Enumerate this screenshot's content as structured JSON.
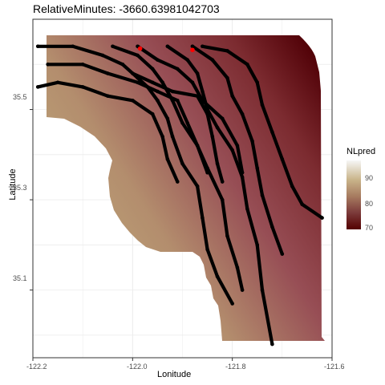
{
  "chart_data": {
    "type": "scatter",
    "title": "RelativeMinutes: -3660.63981042703",
    "xlabel": "Lonitude",
    "ylabel": "Latitude",
    "xlim": [
      -122.2,
      -121.6
    ],
    "ylim": [
      34.95,
      35.7
    ],
    "x_ticks": [
      "-122.2",
      "-122.0",
      "-121.8",
      "-121.6"
    ],
    "y_ticks": [
      "35.1",
      "35.3",
      "35.5"
    ],
    "legend": {
      "title": "NLpred",
      "labels": [
        "90",
        "80",
        "70"
      ],
      "values": [
        90,
        80,
        70
      ],
      "range": [
        67,
        96
      ],
      "position": "right"
    },
    "grid": true,
    "series": [
      {
        "color": "#000000",
        "tracks": [
          [
            [
              -122.19,
              35.64
            ],
            [
              -122.12,
              35.64
            ],
            [
              -122.06,
              35.62
            ],
            [
              -122.02,
              35.6
            ],
            [
              -121.99,
              35.57
            ],
            [
              -121.97,
              35.55
            ],
            [
              -121.95,
              35.52
            ],
            [
              -121.93,
              35.48
            ],
            [
              -121.92,
              35.44
            ],
            [
              -121.9,
              35.38
            ],
            [
              -121.87,
              35.33
            ],
            [
              -121.86,
              35.26
            ],
            [
              -121.85,
              35.19
            ],
            [
              -121.83,
              35.13
            ],
            [
              -121.8,
              35.07
            ]
          ],
          [
            [
              -122.04,
              35.64
            ],
            [
              -121.99,
              35.62
            ],
            [
              -121.96,
              35.59
            ],
            [
              -121.94,
              35.56
            ],
            [
              -121.92,
              35.52
            ],
            [
              -121.9,
              35.47
            ],
            [
              -121.87,
              35.42
            ],
            [
              -121.85,
              35.37
            ],
            [
              -121.82,
              35.3
            ],
            [
              -121.81,
              35.22
            ],
            [
              -121.79,
              35.15
            ],
            [
              -121.78,
              35.1
            ]
          ],
          [
            [
              -121.93,
              35.64
            ],
            [
              -121.89,
              35.61
            ],
            [
              -121.87,
              35.58
            ],
            [
              -121.86,
              35.54
            ],
            [
              -121.85,
              35.5
            ],
            [
              -121.83,
              35.46
            ],
            [
              -121.8,
              35.41
            ],
            [
              -121.78,
              35.35
            ],
            [
              -121.77,
              35.28
            ],
            [
              -121.75,
              35.2
            ],
            [
              -121.74,
              35.1
            ],
            [
              -121.72,
              34.98
            ]
          ],
          [
            [
              -121.88,
              35.64
            ],
            [
              -121.84,
              35.61
            ],
            [
              -121.81,
              35.57
            ],
            [
              -121.8,
              35.53
            ],
            [
              -121.78,
              35.49
            ],
            [
              -121.76,
              35.43
            ],
            [
              -121.75,
              35.37
            ],
            [
              -121.74,
              35.31
            ],
            [
              -121.72,
              35.24
            ],
            [
              -121.7,
              35.18
            ]
          ],
          [
            [
              -121.86,
              35.64
            ],
            [
              -121.81,
              35.63
            ],
            [
              -121.77,
              35.6
            ],
            [
              -121.75,
              35.56
            ],
            [
              -121.74,
              35.51
            ],
            [
              -121.72,
              35.45
            ],
            [
              -121.7,
              35.39
            ],
            [
              -121.68,
              35.33
            ],
            [
              -121.66,
              35.29
            ],
            [
              -121.62,
              35.26
            ]
          ],
          [
            [
              -122.19,
              35.55
            ],
            [
              -122.15,
              35.56
            ],
            [
              -122.1,
              35.55
            ],
            [
              -122.05,
              35.53
            ],
            [
              -122.0,
              35.52
            ],
            [
              -121.96,
              35.49
            ],
            [
              -121.94,
              35.44
            ],
            [
              -121.93,
              35.39
            ],
            [
              -121.91,
              35.34
            ]
          ],
          [
            [
              -122.17,
              35.6
            ],
            [
              -122.1,
              35.6
            ],
            [
              -122.05,
              35.58
            ],
            [
              -121.99,
              35.56
            ],
            [
              -121.95,
              35.54
            ],
            [
              -121.91,
              35.52
            ],
            [
              -121.89,
              35.47
            ],
            [
              -121.87,
              35.42
            ],
            [
              -121.85,
              35.36
            ]
          ],
          [
            [
              -122.0,
              35.58
            ],
            [
              -121.96,
              35.56
            ],
            [
              -121.92,
              35.54
            ],
            [
              -121.87,
              35.53
            ],
            [
              -121.85,
              35.49
            ],
            [
              -121.84,
              35.44
            ],
            [
              -121.83,
              35.38
            ],
            [
              -121.82,
              35.34
            ]
          ],
          [
            [
              -121.99,
              35.64
            ],
            [
              -121.95,
              35.61
            ],
            [
              -121.91,
              35.59
            ],
            [
              -121.88,
              35.56
            ],
            [
              -121.86,
              35.52
            ],
            [
              -121.82,
              35.48
            ],
            [
              -121.79,
              35.42
            ],
            [
              -121.78,
              35.36
            ]
          ]
        ]
      },
      {
        "color": "#ff0000",
        "points": [
          [
            -121.985,
            35.635
          ],
          [
            -121.88,
            35.632
          ]
        ]
      }
    ]
  },
  "grid_color": "#ebebeb",
  "panel_border": "#333333"
}
